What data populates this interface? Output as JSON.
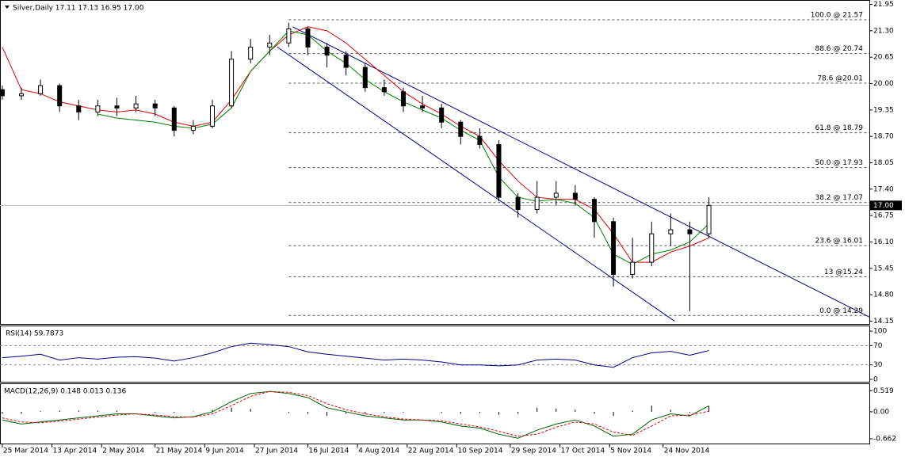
{
  "chart_data": [
    {
      "type": "candlestick",
      "title": "Silver,Daily  17.11 17.13 16.95 17.00",
      "x": [
        0,
        5,
        10,
        15,
        20,
        25,
        30,
        35,
        40,
        45,
        50,
        55,
        60,
        65,
        70,
        75,
        80,
        85,
        90,
        95,
        100,
        105,
        110,
        115,
        120,
        125,
        130,
        135,
        140,
        145,
        150,
        155,
        160,
        165,
        170,
        175,
        180,
        185
      ],
      "ohlc": [
        [
          19.85,
          19.95,
          19.6,
          19.7
        ],
        [
          19.7,
          19.9,
          19.6,
          19.75
        ],
        [
          19.75,
          20.1,
          19.7,
          19.95
        ],
        [
          19.95,
          20.0,
          19.3,
          19.45
        ],
        [
          19.45,
          19.6,
          19.1,
          19.3
        ],
        [
          19.3,
          19.6,
          19.2,
          19.45
        ],
        [
          19.45,
          19.65,
          19.2,
          19.4
        ],
        [
          19.4,
          19.7,
          19.3,
          19.5
        ],
        [
          19.5,
          19.6,
          19.2,
          19.4
        ],
        [
          19.4,
          19.45,
          18.7,
          18.85
        ],
        [
          18.85,
          19.1,
          18.75,
          18.95
        ],
        [
          18.95,
          19.6,
          18.9,
          19.45
        ],
        [
          19.45,
          20.8,
          19.4,
          20.6
        ],
        [
          20.6,
          21.1,
          20.5,
          20.9
        ],
        [
          20.9,
          21.2,
          20.7,
          21.0
        ],
        [
          21.0,
          21.5,
          20.9,
          21.35
        ],
        [
          21.35,
          21.4,
          20.7,
          20.9
        ],
        [
          20.9,
          21.0,
          20.4,
          20.7
        ],
        [
          20.7,
          20.8,
          20.2,
          20.4
        ],
        [
          20.4,
          20.5,
          19.8,
          19.9
        ],
        [
          19.9,
          20.1,
          19.7,
          19.8
        ],
        [
          19.8,
          19.9,
          19.3,
          19.45
        ],
        [
          19.45,
          19.7,
          19.3,
          19.4
        ],
        [
          19.4,
          19.5,
          18.9,
          19.05
        ],
        [
          19.05,
          19.1,
          18.5,
          18.7
        ],
        [
          18.7,
          18.9,
          18.4,
          18.5
        ],
        [
          18.5,
          18.6,
          17.1,
          17.2
        ],
        [
          17.2,
          17.3,
          16.7,
          16.9
        ],
        [
          16.9,
          17.6,
          16.8,
          17.2
        ],
        [
          17.2,
          17.6,
          17.0,
          17.3
        ],
        [
          17.3,
          17.5,
          17.0,
          17.15
        ],
        [
          17.15,
          17.2,
          16.2,
          16.6
        ],
        [
          16.6,
          16.7,
          15.0,
          15.3
        ],
        [
          15.3,
          16.2,
          15.2,
          15.6
        ],
        [
          15.6,
          16.6,
          15.5,
          16.3
        ],
        [
          16.3,
          16.8,
          16.0,
          16.4
        ],
        [
          16.4,
          16.6,
          14.4,
          16.3
        ],
        [
          16.3,
          17.2,
          16.2,
          17.0
        ]
      ],
      "series": [
        {
          "name": "MA slow",
          "color": "#e00000",
          "values": [
            20.9,
            19.85,
            19.75,
            19.55,
            19.45,
            19.35,
            19.3,
            19.35,
            19.25,
            19.05,
            18.95,
            19.05,
            19.6,
            20.3,
            20.8,
            21.2,
            21.4,
            21.3,
            21.0,
            20.6,
            20.2,
            19.8,
            19.5,
            19.25,
            18.95,
            18.7,
            18.1,
            17.6,
            17.2,
            17.15,
            17.15,
            16.9,
            16.3,
            15.6,
            15.6,
            15.85,
            16.0,
            16.2
          ]
        },
        {
          "name": "MA fast",
          "color": "#008000",
          "values": [
            null,
            null,
            null,
            null,
            null,
            19.25,
            19.15,
            19.1,
            19.05,
            18.95,
            18.9,
            19.0,
            19.4,
            20.3,
            20.8,
            21.3,
            21.2,
            20.8,
            20.5,
            20.1,
            19.8,
            19.55,
            19.35,
            19.15,
            18.85,
            18.6,
            17.7,
            17.2,
            17.1,
            17.15,
            17.05,
            16.7,
            15.8,
            15.55,
            15.8,
            15.9,
            16.1,
            16.55
          ]
        }
      ],
      "channel": [
        {
          "x": [
            76,
            227
          ],
          "y": [
            21.4,
            14.25
          ]
        },
        {
          "x": [
            72,
            176
          ],
          "y": [
            20.9,
            14.15
          ]
        }
      ],
      "fib_levels": [
        {
          "value": 21.57,
          "label": "100.0 @ 21.57"
        },
        {
          "value": 20.74,
          "label": "88.6 @ 20.74"
        },
        {
          "value": 20.01,
          "label": "78.6 @20.01"
        },
        {
          "value": 18.79,
          "label": "61.8 @ 18.79"
        },
        {
          "value": 17.93,
          "label": "50.0 @ 17.93"
        },
        {
          "value": 17.07,
          "label": "38.2 @ 17.07"
        },
        {
          "value": 16.01,
          "label": "23.6 @ 16.01"
        },
        {
          "value": 15.24,
          "label": "13 @15.24"
        },
        {
          "value": 14.29,
          "label": "0.0 @ 14.29"
        }
      ],
      "fib_start": 75,
      "last_price": {
        "value": 17.0,
        "label": "17.00"
      },
      "xlim": [
        -0.6,
        227
      ],
      "ylim": [
        14.1,
        22.0
      ],
      "yticks": [
        21.95,
        {
          "value": 21.3,
          "label": "21.30"
        },
        20.65,
        {
          "value": 20.0,
          "label": "20.00"
        },
        19.35,
        {
          "value": 18.7,
          "label": "18.70"
        },
        18.05,
        {
          "value": 17.4,
          "label": "17.40"
        },
        16.75,
        {
          "value": 16.1,
          "label": "16.10"
        },
        15.45,
        {
          "value": 14.8,
          "label": "14.80"
        },
        14.15
      ]
    },
    {
      "type": "line",
      "title": "RSI(14) 59.7873",
      "x": [
        0,
        5,
        10,
        15,
        20,
        25,
        30,
        35,
        40,
        45,
        50,
        55,
        60,
        65,
        70,
        75,
        80,
        85,
        90,
        95,
        100,
        105,
        110,
        115,
        120,
        125,
        130,
        135,
        140,
        145,
        150,
        155,
        160,
        165,
        170,
        175,
        180,
        185
      ],
      "series": [
        {
          "name": "RSI",
          "color": "#000080",
          "values": [
            45,
            48,
            52,
            40,
            45,
            42,
            46,
            47,
            44,
            38,
            45,
            55,
            68,
            75,
            72,
            68,
            57,
            52,
            48,
            44,
            40,
            42,
            40,
            36,
            30,
            30,
            28,
            30,
            40,
            42,
            40,
            30,
            25,
            45,
            55,
            58,
            50,
            59.79
          ]
        }
      ],
      "levels": [
        70,
        30
      ],
      "xlim": [
        -0.6,
        227
      ],
      "ylim": [
        -5,
        110
      ],
      "yticks": [
        100,
        70,
        30,
        0
      ]
    },
    {
      "type": "macd",
      "title": "MACD(12,26,9) 0.148 0.013 0.136",
      "x": [
        0,
        5,
        10,
        15,
        20,
        25,
        30,
        35,
        40,
        45,
        50,
        55,
        60,
        65,
        70,
        75,
        80,
        85,
        90,
        95,
        100,
        105,
        110,
        115,
        120,
        125,
        130,
        135,
        140,
        145,
        150,
        155,
        160,
        165,
        170,
        175,
        180,
        185
      ],
      "histogram": [
        -0.05,
        -0.05,
        0.02,
        0.03,
        0.03,
        0.03,
        0.03,
        0.0,
        -0.02,
        -0.03,
        0.01,
        0.05,
        0.1,
        0.07,
        0.0,
        -0.03,
        -0.05,
        -0.1,
        -0.05,
        -0.05,
        -0.03,
        -0.02,
        0.0,
        -0.03,
        -0.05,
        -0.03,
        -0.07,
        -0.05,
        0.1,
        0.08,
        0.05,
        -0.05,
        -0.1,
        0.03,
        0.15,
        0.05,
        -0.02,
        0.136
      ],
      "series": [
        {
          "name": "MACD",
          "color": "#006000",
          "values": [
            -0.2,
            -0.3,
            -0.25,
            -0.2,
            -0.15,
            -0.1,
            -0.05,
            -0.05,
            -0.1,
            -0.15,
            -0.12,
            0.0,
            0.25,
            0.45,
            0.5,
            0.45,
            0.35,
            0.1,
            0.0,
            -0.1,
            -0.15,
            -0.2,
            -0.2,
            -0.25,
            -0.35,
            -0.4,
            -0.55,
            -0.65,
            -0.45,
            -0.3,
            -0.2,
            -0.35,
            -0.6,
            -0.55,
            -0.2,
            -0.05,
            -0.1,
            0.148
          ]
        },
        {
          "name": "Signal",
          "color": "#e00000",
          "values": [
            -0.15,
            -0.25,
            -0.27,
            -0.23,
            -0.18,
            -0.13,
            -0.08,
            -0.05,
            -0.08,
            -0.12,
            -0.13,
            -0.05,
            0.15,
            0.38,
            0.5,
            0.48,
            0.4,
            0.2,
            0.05,
            -0.05,
            -0.12,
            -0.18,
            -0.2,
            -0.22,
            -0.3,
            -0.37,
            -0.48,
            -0.6,
            -0.55,
            -0.38,
            -0.25,
            -0.3,
            -0.5,
            -0.58,
            -0.35,
            -0.1,
            -0.08,
            0.013
          ]
        }
      ],
      "xlim": [
        -0.6,
        227
      ],
      "ylim": [
        -0.78,
        0.68
      ],
      "yticks": [
        0.519,
        {
          "value": 0,
          "label": "0.00"
        },
        -0.662
      ],
      "xticks": [
        {
          "value": 0,
          "label": "25 Mar 2014"
        },
        {
          "value": 13,
          "label": "13 Apr 2014"
        },
        {
          "value": 26,
          "label": "2 May 2014"
        },
        {
          "value": 40,
          "label": "21 May 2014"
        },
        {
          "value": 53,
          "label": "9 Jun 2014"
        },
        {
          "value": 66,
          "label": "27 Jun 2014"
        },
        {
          "value": 80,
          "label": "16 Jul 2014"
        },
        {
          "value": 93,
          "label": "4 Aug 2014"
        },
        {
          "value": 106,
          "label": "22 Aug 2014"
        },
        {
          "value": 119,
          "label": "10 Sep 2014"
        },
        {
          "value": 133,
          "label": "29 Sep 2014"
        },
        {
          "value": 146,
          "label": "17 Oct 2014"
        },
        {
          "value": 159,
          "label": "5 Nov 2014"
        },
        {
          "value": 173,
          "label": "24 Nov 2014"
        }
      ]
    }
  ]
}
